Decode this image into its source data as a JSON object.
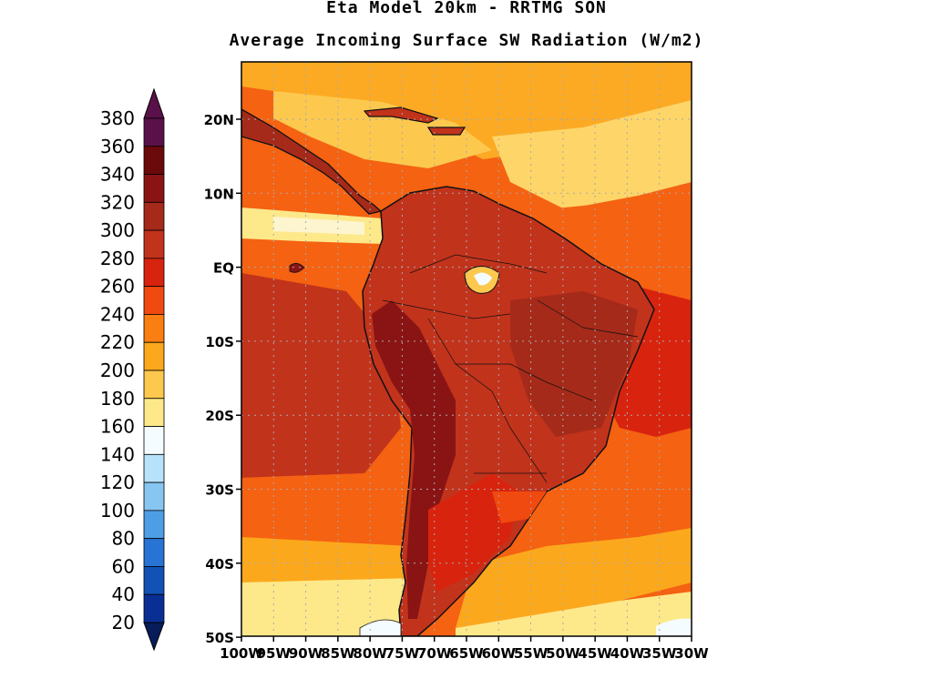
{
  "title": {
    "line1": "Eta Model 20km - RRTMG SON",
    "line2": "Average Incoming Surface SW Radiation (W/m2)"
  },
  "colorbar": {
    "labels": [
      "380",
      "360",
      "340",
      "320",
      "300",
      "280",
      "260",
      "240",
      "220",
      "200",
      "180",
      "160",
      "140",
      "120",
      "100",
      "80",
      "60",
      "40",
      "20"
    ],
    "colors": [
      "#5a1048",
      "#6b0a0a",
      "#8a1414",
      "#a52a1a",
      "#c2331c",
      "#d8240e",
      "#f04a10",
      "#fa7e12",
      "#fca81c",
      "#fdc84e",
      "#fde98a",
      "#f4fcff",
      "#b8e2fa",
      "#88c6f2",
      "#4e9ee6",
      "#2874d4",
      "#1252b4",
      "#0a2f94",
      "#081c5a"
    ],
    "top_arrow_color": "#5a1048",
    "bottom_arrow_color": "#081c5a"
  },
  "axes": {
    "lat_labels": [
      "20N",
      "10N",
      "EQ",
      "10S",
      "20S",
      "30S",
      "40S",
      "50S"
    ],
    "lon_labels": [
      "100W",
      "95W",
      "90W",
      "85W",
      "80W",
      "75W",
      "70W",
      "65W",
      "60W",
      "55W",
      "50W",
      "45W",
      "40W",
      "35W",
      "30W"
    ]
  }
}
